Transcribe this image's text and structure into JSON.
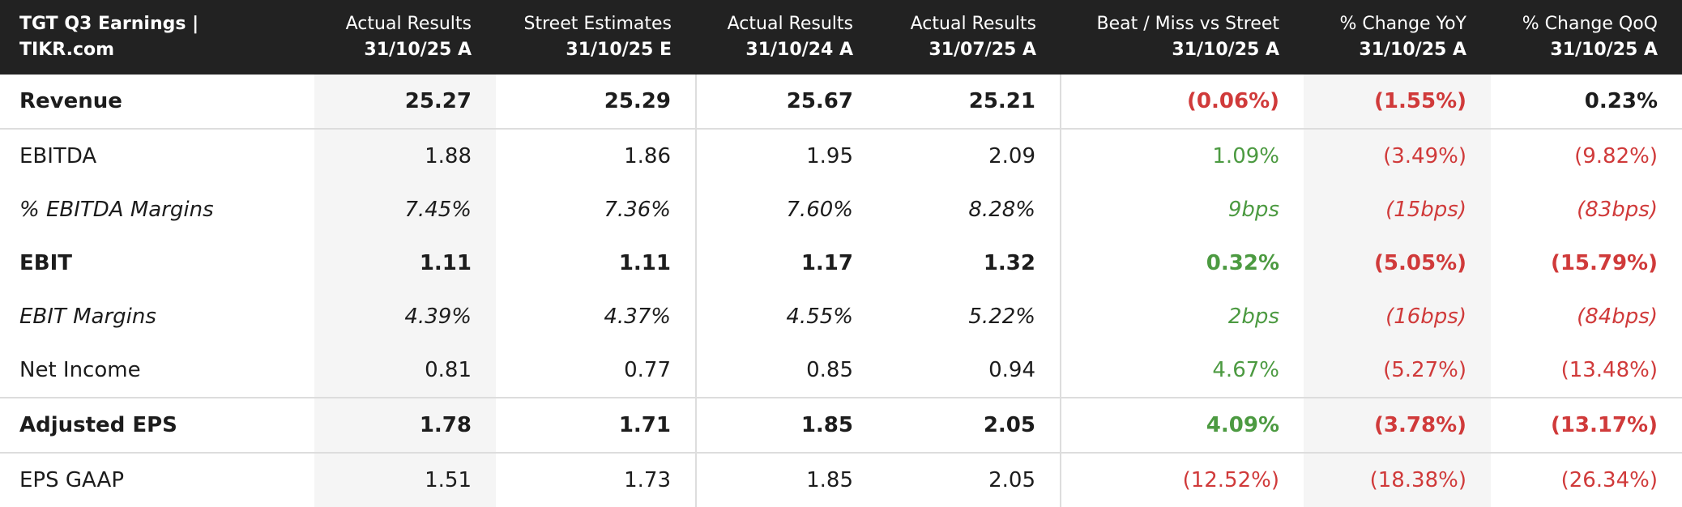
{
  "header": {
    "title": "TGT Q3 Earnings | TIKR.com"
  },
  "columns": [
    {
      "label": "Actual Results",
      "date": "31/10/25 A"
    },
    {
      "label": "Street Estimates",
      "date": "31/10/25 E"
    },
    {
      "label": "Actual Results",
      "date": "31/10/24 A"
    },
    {
      "label": "Actual Results",
      "date": "31/07/25 A"
    },
    {
      "label": "Beat / Miss vs Street",
      "date": "31/10/25 A"
    },
    {
      "label": "% Change YoY",
      "date": "31/10/25 A"
    },
    {
      "label": "% Change QoQ",
      "date": "31/10/25 A"
    }
  ],
  "rows": [
    {
      "label": "Revenue",
      "cells": [
        "25.27",
        "25.29",
        "25.67",
        "25.21",
        "(0.06%)",
        "(1.55%)",
        "0.23%"
      ]
    },
    {
      "label": "EBITDA",
      "cells": [
        "1.88",
        "1.86",
        "1.95",
        "2.09",
        "1.09%",
        "(3.49%)",
        "(9.82%)"
      ]
    },
    {
      "label": "% EBITDA Margins",
      "cells": [
        "7.45%",
        "7.36%",
        "7.60%",
        "8.28%",
        "9bps",
        "(15bps)",
        "(83bps)"
      ]
    },
    {
      "label": "EBIT",
      "cells": [
        "1.11",
        "1.11",
        "1.17",
        "1.32",
        "0.32%",
        "(5.05%)",
        "(15.79%)"
      ]
    },
    {
      "label": "EBIT Margins",
      "cells": [
        "4.39%",
        "4.37%",
        "4.55%",
        "5.22%",
        "2bps",
        "(16bps)",
        "(84bps)"
      ]
    },
    {
      "label": "Net Income",
      "cells": [
        "0.81",
        "0.77",
        "0.85",
        "0.94",
        "4.67%",
        "(5.27%)",
        "(13.48%)"
      ]
    },
    {
      "label": "Adjusted EPS",
      "cells": [
        "1.78",
        "1.71",
        "1.85",
        "2.05",
        "4.09%",
        "(3.78%)",
        "(13.17%)"
      ]
    },
    {
      "label": "EPS GAAP",
      "cells": [
        "1.51",
        "1.73",
        "1.85",
        "2.05",
        "(12.52%)",
        "(18.38%)",
        "(26.34%)"
      ]
    }
  ]
}
